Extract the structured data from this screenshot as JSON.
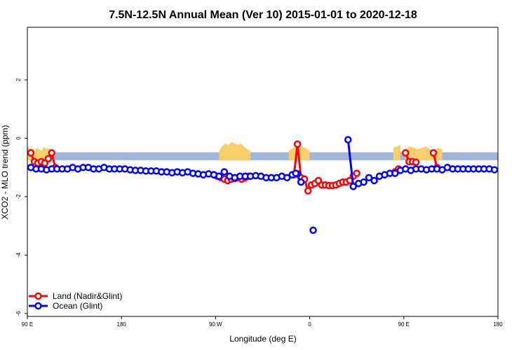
{
  "chart_data": {
    "type": "line",
    "title": "7.5N-12.5N Annual Mean (Ver 10)   2015-01-01 to 2020-12-18",
    "xlabel": "Longitude (deg E)",
    "ylabel": "XCO2 - MLO trend (ppm)",
    "xlim": [
      -90,
      180
    ],
    "ylim": [
      -6.1,
      3.8
    ],
    "x_ticks": [
      {
        "value": -90,
        "label": "90 E"
      },
      {
        "value": -36,
        "label": "180"
      },
      {
        "value": 18,
        "label": "90 W"
      },
      {
        "value": 72,
        "label": "0"
      },
      {
        "value": 126,
        "label": "90 E"
      },
      {
        "value": 180,
        "label": "180"
      }
    ],
    "y_ticks": [
      {
        "value": 2,
        "label": "2"
      },
      {
        "value": 0,
        "label": "0"
      },
      {
        "value": -2,
        "label": "-2"
      },
      {
        "value": -4,
        "label": "-4"
      },
      {
        "value": -6,
        "label": "-6"
      }
    ],
    "band": {
      "ymin": -0.75,
      "ymax": -0.48,
      "color": "#9fb6d8"
    },
    "band_highlight_color": "#f7cf6a",
    "band_highlights": [
      {
        "x": [
          -90,
          -75
        ],
        "h": [
          0.2,
          0.1,
          0.15,
          0.05,
          0.15,
          0.1,
          0.05,
          0.2,
          0.1,
          0.15,
          0.05,
          0.1
        ]
      },
      {
        "x": [
          20,
          38
        ],
        "h": [
          0.05,
          0.2,
          0.3,
          0.25,
          0.35,
          0.3,
          0.25,
          0.3,
          0.2,
          0.1,
          0.05
        ]
      },
      {
        "x": [
          60,
          72
        ],
        "h": [
          0.05,
          0.15,
          0.25,
          0.2,
          0.15,
          0.05
        ]
      },
      {
        "x": [
          120,
          124
        ],
        "h": [
          0.15,
          0.25
        ]
      },
      {
        "x": [
          127,
          148
        ],
        "h": [
          0.1,
          0.2,
          0.15,
          0.1,
          0.15,
          0.2,
          0.1,
          0.05,
          0.15,
          0.1
        ]
      }
    ],
    "series": [
      {
        "name": "Land (Nadir&Glint)",
        "color": "#ff0000",
        "segments": [
          {
            "x": [
              -88,
              -86,
              -84,
              -82,
              -80,
              -78,
              -76,
              -74
            ],
            "y": [
              -0.5,
              -0.8,
              -0.85,
              -0.8,
              -0.85,
              -0.7,
              -0.5,
              -1.0
            ]
          },
          {
            "x": [
              17,
              19,
              21,
              23,
              25,
              27,
              29,
              31,
              33,
              35,
              37
            ],
            "y": [
              -1.25,
              -1.3,
              -1.35,
              -1.4,
              -1.45,
              -1.4,
              -1.38,
              -1.35,
              -1.4,
              -1.35,
              -1.3
            ]
          },
          {
            "x": [
              63,
              65,
              67,
              69,
              71,
              73,
              75,
              77,
              79,
              81,
              83,
              85,
              87,
              89,
              91,
              93,
              95,
              97,
              99
            ],
            "y": [
              -1.25,
              -0.2,
              -1.35,
              -1.4,
              -1.8,
              -1.6,
              -1.55,
              -1.45,
              -1.6,
              -1.6,
              -1.62,
              -1.62,
              -1.6,
              -1.55,
              -1.5,
              -1.5,
              -1.45,
              -1.3,
              -1.2
            ]
          },
          {
            "x": [
              121,
              123
            ],
            "y": [
              -1.15,
              -1.05
            ]
          },
          {
            "x": [
              127,
              129,
              131,
              133
            ],
            "y": [
              -0.5,
              -0.8,
              -0.8,
              -0.82
            ]
          },
          {
            "x": [
              143,
              145
            ],
            "y": [
              -0.5,
              -1.0
            ]
          }
        ]
      },
      {
        "name": "Ocean (Glint)",
        "color": "#0000ff",
        "segments": [
          {
            "x": [
              -88,
              -85,
              -82,
              -79,
              -76,
              -73,
              -70,
              -67,
              -64,
              -61,
              -58,
              -55,
              -52,
              -49,
              -46,
              -43,
              -40,
              -37,
              -34,
              -31,
              -28,
              -25,
              -22,
              -19,
              -16,
              -13,
              -10,
              -7,
              -4,
              -1,
              2,
              5,
              8,
              11,
              14,
              17,
              20,
              23,
              26,
              29,
              32,
              35,
              38,
              41,
              44,
              47,
              50,
              53,
              56,
              59,
              62,
              65
            ],
            "y": [
              -1.0,
              -1.05,
              -1.05,
              -1.08,
              -1.05,
              -1.05,
              -1.05,
              -1.05,
              -1.0,
              -1.05,
              -1.0,
              -1.0,
              -1.05,
              -1.05,
              -1.0,
              -1.05,
              -1.05,
              -1.05,
              -1.05,
              -1.08,
              -1.1,
              -1.1,
              -1.12,
              -1.12,
              -1.12,
              -1.15,
              -1.15,
              -1.18,
              -1.15,
              -1.18,
              -1.15,
              -1.2,
              -1.22,
              -1.25,
              -1.22,
              -1.25,
              -1.3,
              -1.15,
              -1.3,
              -1.35,
              -1.3,
              -1.3,
              -1.3,
              -1.28,
              -1.3,
              -1.35,
              -1.35,
              -1.35,
              -1.3,
              -1.35,
              -1.25,
              -1.22
            ]
          },
          {
            "x": [
              64,
              67
            ],
            "y": [
              -1.2,
              -1.5
            ]
          },
          {
            "x": [
              74
            ],
            "y": [
              -3.15
            ]
          },
          {
            "x": [
              94,
              97,
              100,
              103,
              106,
              109,
              112,
              115,
              118,
              121,
              124,
              127,
              130,
              133,
              136,
              139,
              142,
              145,
              148,
              151,
              154,
              157,
              160,
              163,
              166,
              169,
              172,
              175,
              178
            ],
            "y": [
              -0.05,
              -1.65,
              -1.55,
              -1.5,
              -1.35,
              -1.45,
              -1.3,
              -1.25,
              -1.2,
              -1.2,
              -1.1,
              -1.05,
              -1.1,
              -1.05,
              -1.05,
              -1.08,
              -1.05,
              -1.05,
              -1.08,
              -1.0,
              -1.05,
              -1.05,
              -1.05,
              -1.05,
              -1.05,
              -1.05,
              -1.05,
              -1.05,
              -1.08
            ]
          }
        ]
      }
    ],
    "legend": {
      "placement": "bottom-left"
    }
  }
}
